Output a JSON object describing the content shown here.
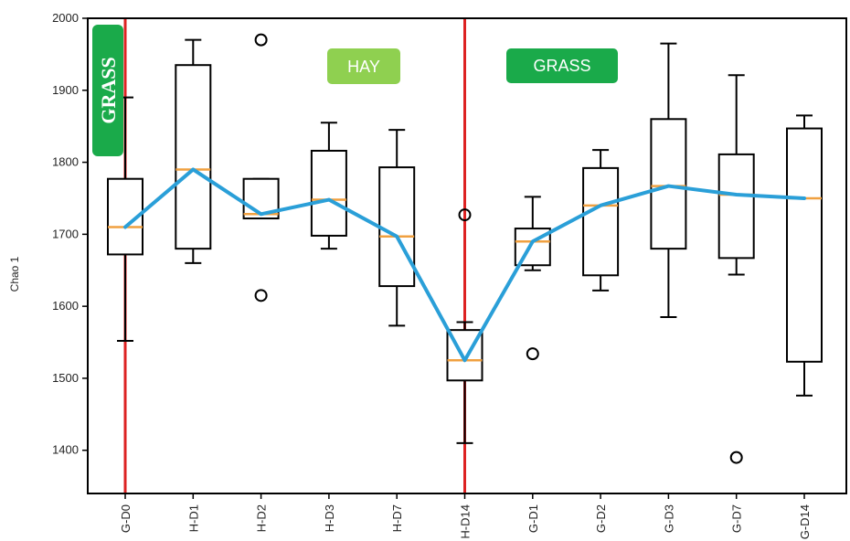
{
  "chart_data": {
    "type": "box",
    "title": "",
    "xlabel": "",
    "ylabel": "Chao 1",
    "ylim": [
      1340,
      2000
    ],
    "yticks": [
      1400,
      1500,
      1600,
      1700,
      1800,
      1900,
      2000
    ],
    "categories": [
      "G-D0",
      "H-D1",
      "H-D2",
      "H-D3",
      "H-D7",
      "H-D14",
      "G-D1",
      "G-D2",
      "G-D3",
      "G-D7",
      "G-D14"
    ],
    "boxes": [
      {
        "category": "G-D0",
        "whisker_low": 1552,
        "q1": 1672,
        "median": 1710,
        "q3": 1777,
        "whisker_high": 1890,
        "outliers": []
      },
      {
        "category": "H-D1",
        "whisker_low": 1660,
        "q1": 1680,
        "median": 1790,
        "q3": 1935,
        "whisker_high": 1970,
        "outliers": []
      },
      {
        "category": "H-D2",
        "whisker_low": 1722,
        "q1": 1722,
        "median": 1728,
        "q3": 1777,
        "whisker_high": 1777,
        "outliers": [
          1970,
          1615
        ]
      },
      {
        "category": "H-D3",
        "whisker_low": 1680,
        "q1": 1698,
        "median": 1748,
        "q3": 1816,
        "whisker_high": 1855,
        "outliers": []
      },
      {
        "category": "H-D7",
        "whisker_low": 1573,
        "q1": 1628,
        "median": 1697,
        "q3": 1793,
        "whisker_high": 1845,
        "outliers": []
      },
      {
        "category": "H-D14",
        "whisker_low": 1410,
        "q1": 1497,
        "median": 1525,
        "q3": 1567,
        "whisker_high": 1578,
        "outliers": [
          1727
        ]
      },
      {
        "category": "G-D1",
        "whisker_low": 1650,
        "q1": 1657,
        "median": 1690,
        "q3": 1708,
        "whisker_high": 1752,
        "outliers": [
          1534
        ]
      },
      {
        "category": "G-D2",
        "whisker_low": 1622,
        "q1": 1643,
        "median": 1740,
        "q3": 1792,
        "whisker_high": 1817,
        "outliers": []
      },
      {
        "category": "G-D3",
        "whisker_low": 1585,
        "q1": 1680,
        "median": 1767,
        "q3": 1860,
        "whisker_high": 1965,
        "outliers": []
      },
      {
        "category": "G-D7",
        "whisker_low": 1644,
        "q1": 1667,
        "median": 1755,
        "q3": 1811,
        "whisker_high": 1921,
        "outliers": [
          1390
        ]
      },
      {
        "category": "G-D14",
        "whisker_low": 1476,
        "q1": 1523,
        "median": 1750,
        "q3": 1847,
        "whisker_high": 1865,
        "outliers": []
      }
    ],
    "trend_line": [
      1710,
      1790,
      1728,
      1748,
      1697,
      1525,
      1690,
      1740,
      1767,
      1755,
      1750
    ],
    "dividers_after_category": [
      "G-D0",
      "H-D14"
    ],
    "annotations": {
      "grass_vertical": "GRASS",
      "hay": "HAY",
      "grass": "GRASS"
    },
    "colors": {
      "box_stroke": "#000000",
      "median": "#f0a040",
      "trend": "#2a9fd8",
      "divider": "#dd2222",
      "grass_badge": "#1aaa4a",
      "hay_badge": "#8fd050"
    },
    "grid": false,
    "legend": "none"
  }
}
